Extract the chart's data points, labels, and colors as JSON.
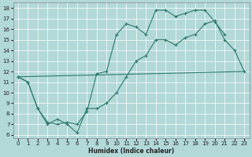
{
  "xlabel": "Humidex (Indice chaleur)",
  "bg_color": "#b2d8d8",
  "line_color": "#2d7a6a",
  "xlim_min": -0.5,
  "xlim_max": 23.5,
  "ylim_min": 5.7,
  "ylim_max": 18.5,
  "xticks": [
    0,
    1,
    2,
    3,
    4,
    5,
    6,
    7,
    8,
    9,
    10,
    11,
    12,
    13,
    14,
    15,
    16,
    17,
    18,
    19,
    20,
    21,
    22,
    23
  ],
  "yticks": [
    6,
    7,
    8,
    9,
    10,
    11,
    12,
    13,
    14,
    15,
    16,
    17,
    18
  ],
  "line1_x": [
    0,
    1,
    2,
    3,
    4,
    5,
    6,
    7,
    8,
    9,
    10,
    11,
    12,
    13,
    14,
    15,
    16,
    17,
    18,
    19,
    20,
    21,
    22,
    23
  ],
  "line1_y": [
    11.5,
    11.0,
    8.5,
    7.0,
    7.5,
    7.0,
    6.2,
    8.5,
    8.5,
    9.0,
    10.0,
    11.5,
    13.0,
    13.5,
    15.0,
    15.0,
    14.5,
    15.2,
    15.5,
    16.5,
    16.8,
    15.0,
    14.0,
    12.0
  ],
  "line2_x": [
    0,
    1,
    2,
    3,
    4,
    5,
    6,
    7,
    8,
    9,
    10,
    11,
    12,
    13,
    14,
    15,
    16,
    17,
    18,
    19,
    20,
    21
  ],
  "line2_y": [
    11.5,
    11.0,
    8.5,
    7.2,
    7.0,
    7.2,
    7.0,
    8.2,
    11.8,
    12.0,
    15.5,
    16.5,
    16.2,
    15.5,
    17.8,
    17.8,
    17.2,
    17.5,
    17.8,
    17.8,
    16.7,
    15.5
  ],
  "line3_x": [
    0,
    23
  ],
  "line3_y": [
    11.5,
    12.0
  ]
}
